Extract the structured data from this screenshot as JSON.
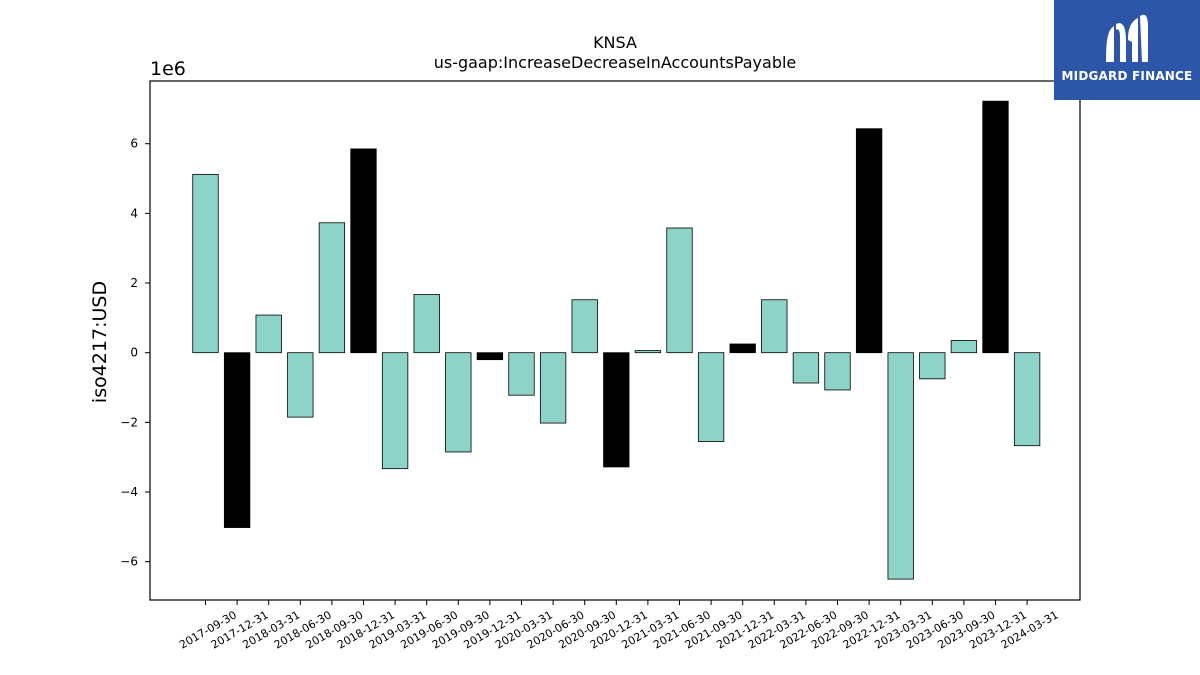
{
  "logo": {
    "text": "MIDGARD FINANCE",
    "background": "#2d56a8"
  },
  "chart_data": {
    "type": "bar",
    "title": "KNSA",
    "subtitle": "us-gaap:IncreaseDecreaseInAccountsPayable",
    "ylabel": "iso4217:USD",
    "xlabel": "",
    "y_scale_label": "1e6",
    "ylim": [
      -7.1,
      7.8
    ],
    "yticks": [
      -6,
      -4,
      -2,
      0,
      2,
      4,
      6
    ],
    "ytick_labels": [
      "−6",
      "−4",
      "−2",
      "0",
      "2",
      "4",
      "6"
    ],
    "grid": false,
    "colors": {
      "teal": "#8dd3c7",
      "black": "#000000"
    },
    "categories": [
      "2017-09-30",
      "2017-12-31",
      "2018-03-31",
      "2018-06-30",
      "2018-09-30",
      "2018-12-31",
      "2019-03-31",
      "2019-06-30",
      "2019-09-30",
      "2019-12-31",
      "2020-03-31",
      "2020-06-30",
      "2020-09-30",
      "2020-12-31",
      "2021-03-31",
      "2021-06-30",
      "2021-09-30",
      "2021-12-31",
      "2022-03-31",
      "2022-06-30",
      "2022-09-30",
      "2022-12-31",
      "2023-03-31",
      "2023-06-30",
      "2023-09-30",
      "2023-12-31",
      "2024-03-31"
    ],
    "values": [
      5.12,
      -5.02,
      1.08,
      -1.85,
      3.73,
      5.85,
      -3.33,
      1.67,
      -2.85,
      -0.2,
      -1.22,
      -2.02,
      1.52,
      -3.28,
      0.06,
      3.58,
      -2.55,
      0.25,
      1.52,
      -0.87,
      -1.07,
      6.43,
      -6.5,
      -0.75,
      0.35,
      7.22,
      -2.67
    ],
    "bar_colors": [
      "teal",
      "black",
      "teal",
      "teal",
      "teal",
      "black",
      "teal",
      "teal",
      "teal",
      "black",
      "teal",
      "teal",
      "teal",
      "black",
      "teal",
      "teal",
      "teal",
      "black",
      "teal",
      "teal",
      "teal",
      "black",
      "teal",
      "teal",
      "teal",
      "black",
      "teal"
    ]
  }
}
